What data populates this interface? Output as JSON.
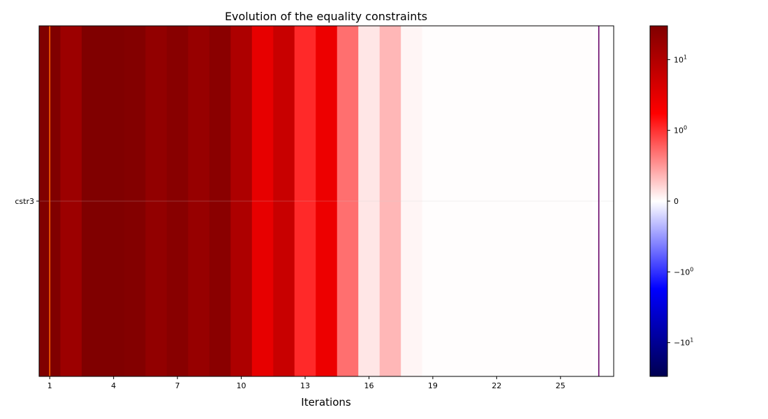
{
  "chart_data": {
    "type": "heatmap",
    "title": "Evolution of the equality constraints",
    "xlabel": "Iterations",
    "ylabel": "",
    "rows": [
      "cstr3"
    ],
    "x": [
      1,
      2,
      3,
      4,
      5,
      6,
      7,
      8,
      9,
      10,
      11,
      12,
      13,
      14,
      15,
      16,
      17,
      18,
      19,
      20,
      21,
      22,
      23,
      24,
      25,
      26,
      27
    ],
    "values": [
      [
        30,
        16,
        30,
        30,
        28,
        20,
        25,
        18,
        24,
        11,
        3,
        6,
        1.1,
        2.6,
        0.7,
        0.12,
        0.35,
        0.05,
        0.01,
        0.01,
        0.01,
        0.01,
        0.01,
        0.01,
        0.01,
        0.01,
        0.0
      ]
    ],
    "xlim": [
      0.5,
      27.5
    ],
    "x_ticks": [
      1,
      4,
      7,
      10,
      13,
      16,
      19,
      22,
      25
    ],
    "colorbar": {
      "colormap": "seismic",
      "scale": "symlog",
      "range": [
        -30,
        30
      ],
      "ticks": [
        "10^1",
        "10^0",
        "0",
        "−10^0",
        "−10^1"
      ],
      "tick_values": [
        10,
        1,
        0,
        -1,
        -10
      ]
    },
    "vertical_lines": [
      {
        "x": 1,
        "color": "#ff6600"
      },
      {
        "x": 26.8,
        "color": "#660066"
      }
    ],
    "grid": true
  }
}
